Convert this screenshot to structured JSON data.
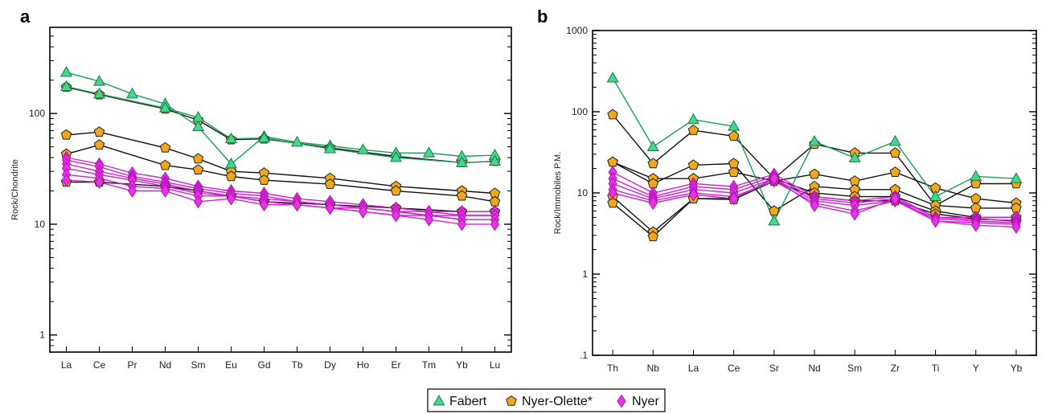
{
  "chart_data": [
    {
      "type": "line",
      "panel": "a",
      "ylabel": "Rock/Chondrite",
      "yscale": "log",
      "ylim": [
        0.7,
        600
      ],
      "y_ticks": [
        {
          "v": 1,
          "label": "1"
        },
        {
          "v": 10,
          "label": "10"
        },
        {
          "v": 100,
          "label": "100"
        }
      ],
      "categories": [
        "La",
        "Ce",
        "Pr",
        "Nd",
        "Sm",
        "Eu",
        "Gd",
        "Tb",
        "Dy",
        "Ho",
        "Er",
        "Tm",
        "Yb",
        "Lu"
      ],
      "series": [
        {
          "group": "Fabert",
          "values": [
            235,
            195,
            150,
            122,
            76,
            35,
            62,
            55,
            51,
            47,
            44,
            44,
            41,
            42
          ]
        },
        {
          "group": "Fabert",
          "values": [
            175,
            150,
            null,
            112,
            92,
            59,
            60,
            null,
            48,
            null,
            40,
            null,
            36,
            37
          ]
        },
        {
          "group": "Nyer-Olette*",
          "values": [
            173,
            148,
            null,
            110,
            87,
            58,
            59,
            null,
            49,
            null,
            41,
            null,
            36,
            37
          ]
        },
        {
          "group": "Nyer-Olette*",
          "values": [
            64,
            68,
            null,
            49,
            39,
            30,
            29,
            null,
            26,
            null,
            22,
            null,
            20,
            19
          ]
        },
        {
          "group": "Nyer-Olette*",
          "values": [
            43,
            52,
            null,
            34,
            31,
            27,
            25,
            null,
            23,
            null,
            20,
            null,
            18,
            16
          ]
        },
        {
          "group": "Nyer-Olette*",
          "values": [
            24,
            24,
            null,
            22,
            20,
            18,
            16,
            null,
            15,
            null,
            14,
            null,
            13,
            13
          ]
        },
        {
          "group": "Nyer",
          "values": [
            40,
            35,
            29,
            26,
            22,
            20,
            19,
            17,
            16,
            15,
            14,
            13,
            13,
            13
          ]
        },
        {
          "group": "Nyer",
          "values": [
            38,
            33,
            27,
            24,
            21,
            19,
            18,
            16,
            15,
            14,
            13,
            13,
            12,
            12
          ]
        },
        {
          "group": "Nyer",
          "values": [
            35,
            30,
            26,
            23,
            20,
            18,
            17,
            16,
            15,
            14,
            13,
            12,
            12,
            12
          ]
        },
        {
          "group": "Nyer",
          "values": [
            32,
            28,
            25,
            22,
            19,
            18,
            16,
            15,
            14,
            14,
            13,
            12,
            11,
            11
          ]
        },
        {
          "group": "Nyer",
          "values": [
            28,
            26,
            22,
            21,
            18,
            18,
            16,
            15,
            14,
            13,
            12,
            12,
            11,
            11
          ]
        },
        {
          "group": "Nyer",
          "values": [
            25,
            24,
            20,
            20,
            16,
            17,
            15,
            15,
            14,
            13,
            12,
            11,
            10,
            10
          ]
        }
      ]
    },
    {
      "type": "line",
      "panel": "b",
      "ylabel": "Rock/Immobiles P.M.",
      "yscale": "log",
      "ylim": [
        0.1,
        1000
      ],
      "y_ticks": [
        {
          "v": 0.1,
          "label": ".1"
        },
        {
          "v": 1,
          "label": "1"
        },
        {
          "v": 10,
          "label": "10"
        },
        {
          "v": 100,
          "label": "100"
        },
        {
          "v": 1000,
          "label": "1000"
        }
      ],
      "categories": [
        "Th",
        "Nb",
        "La",
        "Ce",
        "Sr",
        "Nd",
        "Sm",
        "Zr",
        "Ti",
        "Y",
        "Yb"
      ],
      "series": [
        {
          "group": "Fabert",
          "values": [
            260,
            37,
            80,
            66,
            4.5,
            43,
            27,
            43,
            9,
            16,
            15
          ]
        },
        {
          "group": "Nyer-Olette*",
          "values": [
            92,
            23,
            59,
            50,
            15,
            40,
            31,
            31,
            7,
            13,
            13
          ]
        },
        {
          "group": "Nyer-Olette*",
          "values": [
            24,
            15,
            15,
            18,
            14,
            17,
            14,
            18,
            11.5,
            8.5,
            7.5
          ]
        },
        {
          "group": "Nyer-Olette*",
          "values": [
            24,
            13,
            22,
            23,
            6,
            12,
            11,
            11,
            7,
            6.5,
            6.5
          ]
        },
        {
          "group": "Nyer-Olette*",
          "values": [
            9,
            3.3,
            8.5,
            8.5,
            15,
            10,
            9,
            9,
            6,
            5,
            5
          ]
        },
        {
          "group": "Nyer-Olette*",
          "values": [
            7.5,
            2.9,
            8.5,
            8.3,
            14,
            9,
            8,
            8,
            5.5,
            4.8,
            4.5
          ]
        },
        {
          "group": "Nyer",
          "values": [
            18,
            10,
            13,
            12,
            17,
            9,
            8,
            9,
            5,
            5,
            5
          ]
        },
        {
          "group": "Nyer",
          "values": [
            15,
            9,
            12,
            11,
            16,
            8.5,
            7.5,
            8.5,
            5,
            4.7,
            4.6
          ]
        },
        {
          "group": "Nyer",
          "values": [
            13,
            8.5,
            11,
            10,
            15,
            8,
            7,
            8,
            4.8,
            4.5,
            4.3
          ]
        },
        {
          "group": "Nyer",
          "values": [
            11,
            8,
            10,
            9,
            14,
            7.5,
            6,
            8,
            4.5,
            4.3,
            4.1
          ]
        },
        {
          "group": "Nyer",
          "values": [
            10,
            7.5,
            9.5,
            8.5,
            15,
            7,
            5.5,
            8.5,
            4.5,
            4,
            3.8
          ]
        }
      ]
    }
  ],
  "legend": [
    {
      "label": "Fabert",
      "marker": "triangle"
    },
    {
      "label": "Nyer-Olette*",
      "marker": "pentagon"
    },
    {
      "label": "Nyer",
      "marker": "diamond"
    }
  ],
  "styles": {
    "Fabert": {
      "line": "#1a9e55",
      "fill": "#44d88c",
      "stroke": "#1a7a44",
      "marker": "triangle"
    },
    "Nyer-Olette*": {
      "line": "#111111",
      "fill": "#f0a818",
      "stroke": "#222222",
      "marker": "pentagon"
    },
    "Nyer": {
      "line": "#d21fd2",
      "fill": "#e633e6",
      "stroke": "#b010b0",
      "marker": "diamond"
    }
  }
}
